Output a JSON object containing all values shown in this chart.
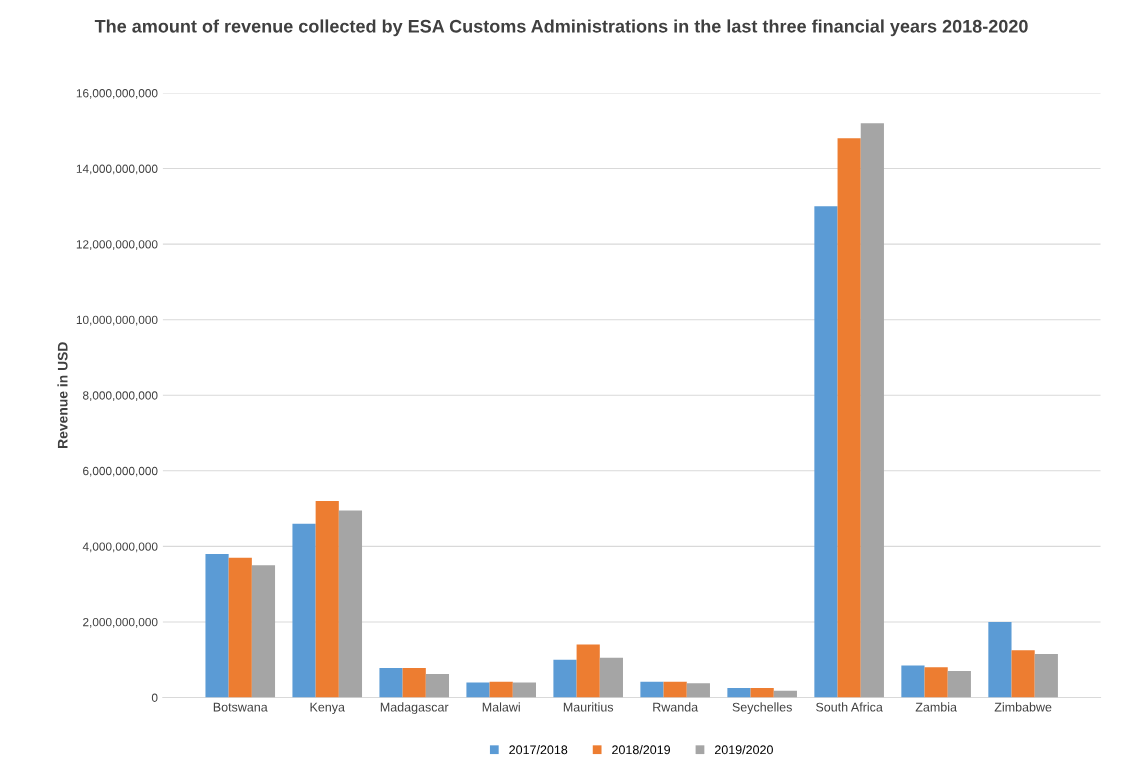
{
  "chart_data": {
    "type": "bar",
    "title": "The amount of revenue collected by ESA Customs Administrations in the last three financial years 2018-2020",
    "ylabel": "Revenue in USD",
    "categories": [
      "Botswana",
      "Kenya",
      "Madagascar",
      "Malawi",
      "Mauritius",
      "Rwanda",
      "Seychelles",
      "South Africa",
      "Zambia",
      "Zimbabwe"
    ],
    "series": [
      {
        "name": "2017/2018",
        "color": "#5b9bd5",
        "values": [
          3800000000,
          4600000000,
          780000000,
          400000000,
          1000000000,
          420000000,
          250000000,
          13000000000,
          850000000,
          2000000000
        ]
      },
      {
        "name": "2018/2019",
        "color": "#ed7d31",
        "values": [
          3700000000,
          5200000000,
          780000000,
          420000000,
          1400000000,
          420000000,
          250000000,
          14800000000,
          800000000,
          1250000000
        ]
      },
      {
        "name": "2019/2020",
        "color": "#a5a5a5",
        "values": [
          3500000000,
          4950000000,
          620000000,
          400000000,
          1050000000,
          380000000,
          180000000,
          15200000000,
          700000000,
          1150000000
        ]
      }
    ],
    "ylim": [
      0,
      16000000000
    ],
    "yticks": [
      0,
      {
        "value": 2000000000,
        "label": "2,000,000,000"
      },
      {
        "value": 4000000000,
        "label": "4,000,000,000"
      },
      {
        "value": 6000000000,
        "label": "6,000,000,000"
      },
      {
        "value": 8000000000,
        "label": "8,000,000,000"
      },
      {
        "value": 10000000000,
        "label": "10,000,000,000"
      },
      {
        "value": 12000000000,
        "label": "12,000,000,000"
      },
      {
        "value": 14000000000,
        "label": "14,000,000,000"
      },
      {
        "value": 16000000000,
        "label": "16,000,000,000"
      }
    ],
    "grid": "y",
    "legend": "bottom"
  }
}
